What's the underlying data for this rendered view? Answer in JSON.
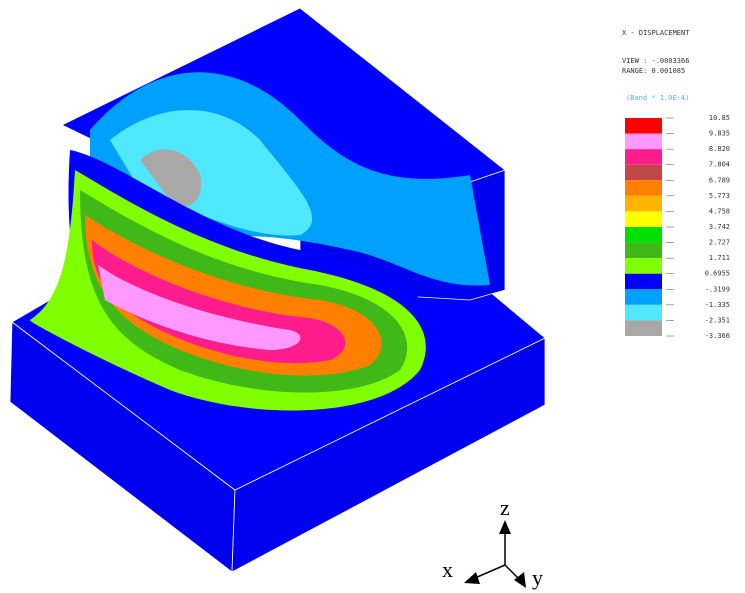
{
  "legend": {
    "title": "X - DISPLACEMENT",
    "view": "VIEW : -.0003366",
    "range": "RANGE: 0.001085",
    "band_note": "(Band * 1.0E-4)",
    "ticks": [
      "10.85",
      "9.835",
      "8.820",
      "7.804",
      "6.789",
      "5.773",
      "4.758",
      "3.742",
      "2.727",
      "1.711",
      "0.6955",
      "-.3199",
      "-1.335",
      "-2.351",
      "-3.366"
    ],
    "band_colors": [
      "#ff0000",
      "#ff99ff",
      "#ff1c8c",
      "#c04848",
      "#ff8000",
      "#ffb400",
      "#ffff00",
      "#00e000",
      "#40b818",
      "#80ff00",
      "#0000ff",
      "#00a0ff",
      "#50e8ff",
      "#a8a8a8"
    ]
  },
  "axes": {
    "x": "x",
    "y": "y",
    "z": "z"
  }
}
